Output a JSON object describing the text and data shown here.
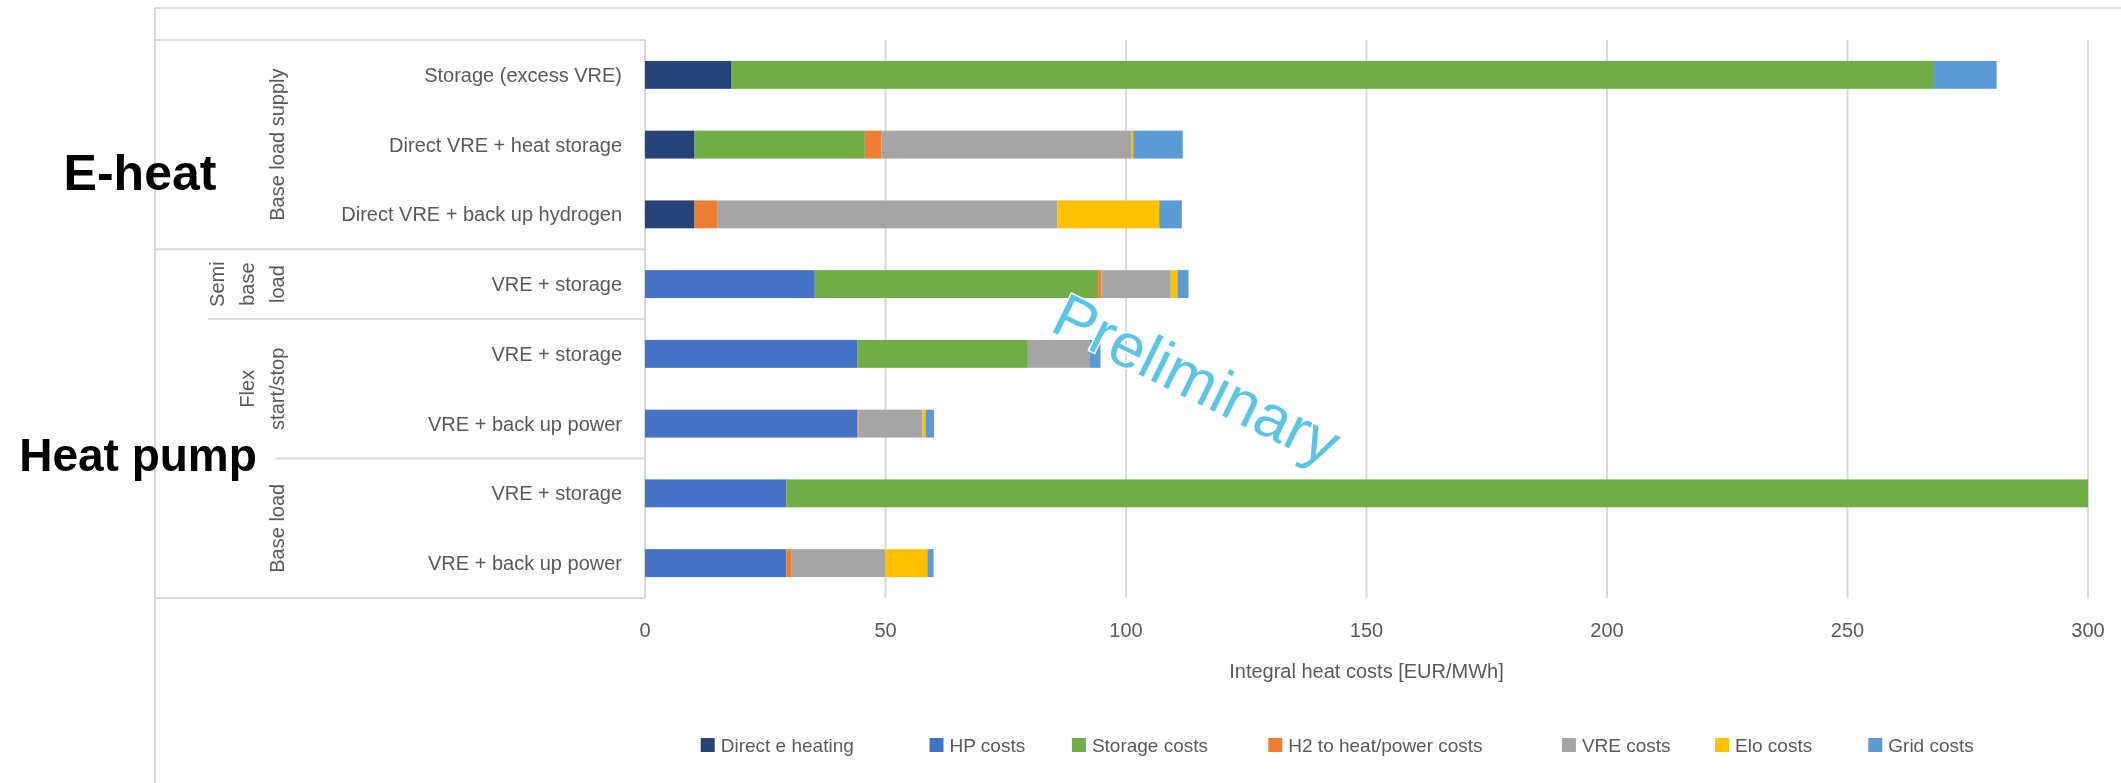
{
  "chart_data": {
    "type": "bar",
    "orientation": "horizontal",
    "stacked": true,
    "categories": [
      "Storage (excess VRE)",
      "Direct VRE + heat storage",
      "Direct VRE + back up hydrogen",
      "VRE + storage",
      "VRE + storage",
      "VRE + back up power",
      "VRE + storage",
      "VRE + back up power"
    ],
    "series": [
      {
        "name": "Direct e heating",
        "color": "#264478",
        "values": [
          18,
          10.3,
          10.3,
          0,
          0,
          0,
          0,
          0
        ]
      },
      {
        "name": "HP costs",
        "color": "#4472c4",
        "values": [
          0,
          0,
          0,
          35.3,
          44.1,
          44.1,
          29.4,
          29.4
        ]
      },
      {
        "name": "Storage costs",
        "color": "#70ad47",
        "values": [
          250,
          35.4,
          0,
          58.9,
          35.5,
          0,
          270.6,
          0
        ]
      },
      {
        "name": "H2 to heat/power costs",
        "color": "#ed7d31",
        "values": [
          0,
          3.5,
          4.7,
          0.7,
          0,
          0.3,
          0,
          1.1
        ]
      },
      {
        "name": "VRE costs",
        "color": "#a5a5a5",
        "values": [
          0,
          52,
          70.7,
          14.4,
          12.9,
          13.3,
          0,
          19.5
        ]
      },
      {
        "name": "Elo costs",
        "color": "#ffc000",
        "values": [
          0,
          0.3,
          21.2,
          1.4,
          0,
          0.6,
          0,
          8.7
        ]
      },
      {
        "name": "Grid costs",
        "color": "#5b9bd5",
        "values": [
          13,
          10.3,
          4.7,
          2.3,
          2.2,
          1.8,
          0,
          1.3
        ]
      }
    ],
    "xlim": [
      0,
      300
    ],
    "xticks": [
      0,
      50,
      100,
      150,
      200,
      250,
      300
    ],
    "xlabel": "Integral heat costs [EUR/MWh]",
    "grid": "x",
    "legend": "bottom",
    "annotations": [
      "E-heat",
      "Heat pump",
      "Base load supply",
      "Semi base load",
      "Flex start/stop",
      "Base load",
      "Preliminary"
    ]
  }
}
